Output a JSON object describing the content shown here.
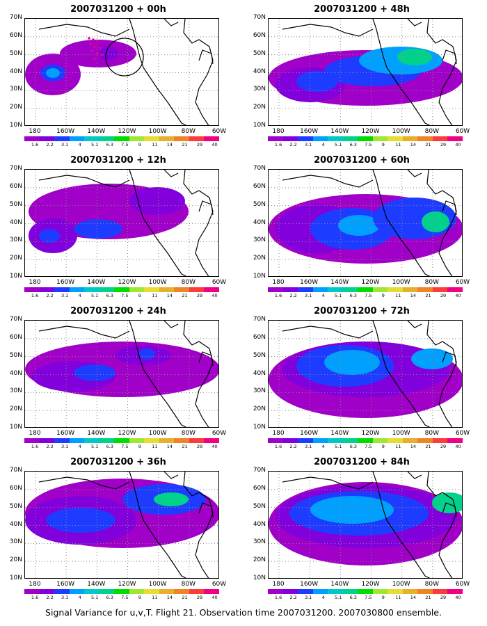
{
  "caption": "Signal Variance for u,v,T. Flight 21. Observation time 2007031200. 2007030800 ensemble.",
  "lat_labels": [
    "70N",
    "60N",
    "50N",
    "40N",
    "30N",
    "20N",
    "10N"
  ],
  "lon_labels": [
    "180",
    "160W",
    "140W",
    "120W",
    "100W",
    "80W",
    "60W"
  ],
  "colorbar": {
    "colors": [
      "#a000c8",
      "#8200dc",
      "#1e3cff",
      "#00a0ff",
      "#00c8c8",
      "#00d28c",
      "#00dc00",
      "#a0e632",
      "#e6dc32",
      "#e6af2d",
      "#f08228",
      "#fa3c3c",
      "#f00082"
    ],
    "labels": [
      "1.6",
      "2.2",
      "3.1",
      "4",
      "5.1",
      "6.3",
      "7.5",
      "9",
      "11",
      "14",
      "21",
      "29",
      "40"
    ]
  },
  "panels": [
    {
      "title": "2007031200 + 00h"
    },
    {
      "title": "2007031200 + 48h"
    },
    {
      "title": "2007031200 + 12h"
    },
    {
      "title": "2007031200 + 60h"
    },
    {
      "title": "2007031200 + 24h"
    },
    {
      "title": "2007031200 + 72h"
    },
    {
      "title": "2007031200 + 36h"
    },
    {
      "title": "2007031200 + 84h"
    }
  ]
}
